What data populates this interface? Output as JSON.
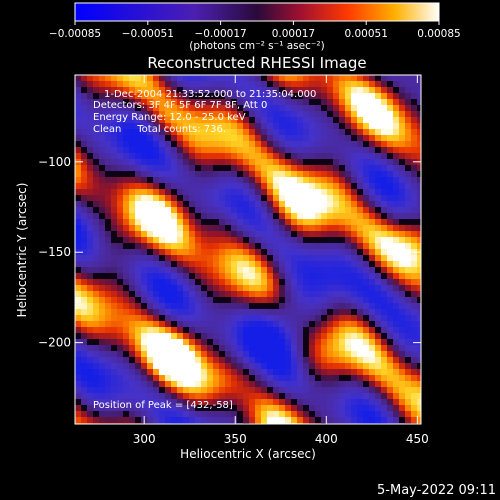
{
  "chart_data": {
    "type": "heatmap",
    "title": "Reconstructed RHESSI Image",
    "xlabel": "Heliocentric X (arcsec)",
    "ylabel": "Heliocentric Y (arcsec)",
    "xlim": [
      262,
      452
    ],
    "ylim": [
      -245,
      -52
    ],
    "x_ticks": [
      300,
      350,
      400,
      450
    ],
    "x_tick_labels": [
      "300",
      "350",
      "400",
      "450"
    ],
    "y_ticks": [
      -100,
      -150,
      -200
    ],
    "y_tick_labels": [
      "−100",
      "−150",
      "−200"
    ],
    "colorbar": {
      "range": [
        -0.00085,
        0.00085
      ],
      "ticks": [
        -0.00085,
        -0.00051,
        -0.00017,
        0.00017,
        0.00051,
        0.00085
      ],
      "tick_labels": [
        "−0.00085",
        "−0.00051",
        "−0.00017",
        "0.00017",
        "0.00051",
        "0.00085"
      ],
      "unit": "(photons cm⁻² s⁻¹ asec⁻²)"
    },
    "info_lines": [
      "1-Dec-2004 21:33:52.000 to 21:35:04.000",
      "Detectors: 3F 4F 5F 6F 7F 8F, Att 0",
      "Energy Range: 12.0 - 25.0 keV",
      "Clean     Total counts: 736."
    ],
    "peak_text": "Position of Peak = [432,-58]",
    "pattern": "diagonal bands of positive flux (orange/yellow) alternating with negative flux (blue/purple), running from upper-left to lower-right"
  },
  "timestamp": "5-May-2022 09:11"
}
